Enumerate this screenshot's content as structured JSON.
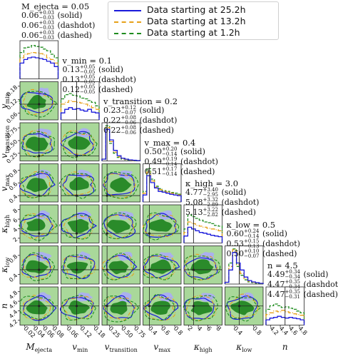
{
  "legend": {
    "items": [
      {
        "label": "Data starting at 25.2h",
        "color": "#1a1adb",
        "dash": "solid"
      },
      {
        "label": "Data starting at 13.2h",
        "color": "#e6a019",
        "dash": "dashdot"
      },
      {
        "label": "Data starting at 1.2h",
        "color": "#1e8c1e",
        "dash": "dashed"
      }
    ]
  },
  "chart_data": {
    "type": "corner",
    "parameters": [
      {
        "key": "mej",
        "label": "M_ejecta",
        "truth": 0.05,
        "ticks": [
          "0.02",
          "0.04",
          "0.06",
          "0.08"
        ],
        "range": [
          0.01,
          0.09
        ]
      },
      {
        "key": "vmin",
        "label": "v_min",
        "truth": 0.1,
        "ticks": [
          "0.06",
          "0.12",
          "0.18"
        ],
        "range": [
          0.03,
          0.2
        ]
      },
      {
        "key": "vtr",
        "label": "v_transition",
        "truth": 0.2,
        "ticks": [
          "0.25",
          "0.50",
          "0.75"
        ],
        "range": [
          0.1,
          0.85
        ]
      },
      {
        "key": "vmax",
        "label": "v_max",
        "truth": 0.4,
        "ticks": [
          "0.4",
          "0.6",
          "0.8"
        ],
        "range": [
          0.3,
          0.9
        ]
      },
      {
        "key": "khigh",
        "label": "κ_high",
        "truth": 3.0,
        "ticks": [
          "2",
          "4",
          "6",
          "8"
        ],
        "range": [
          1,
          9
        ]
      },
      {
        "key": "klow",
        "label": "κ_low",
        "truth": 0.5,
        "ticks": [
          "0.4",
          "0.8"
        ],
        "range": [
          0.2,
          1.0
        ]
      },
      {
        "key": "n",
        "label": "n",
        "truth": 4.5,
        "ticks": [
          "4.2",
          "4.4",
          "4.6",
          "4.8"
        ],
        "range": [
          4.1,
          4.9
        ]
      }
    ],
    "y_tick_labels": {
      "vmin": [
        "0.06",
        "0.12",
        "0.18"
      ],
      "vtr": [
        "0.25",
        "0.50",
        "0.75"
      ],
      "vmax": [
        "0.4",
        "0.6",
        "0.8"
      ],
      "khigh": [
        "2",
        "4",
        "6",
        "8"
      ],
      "klow": [
        "0.4",
        "0.8"
      ],
      "n": [
        "4.2",
        "4.4",
        "4.6",
        "4.8"
      ]
    },
    "annotations": [
      {
        "header": "M_ejecta = 0.05",
        "rows": [
          {
            "median": "0.06",
            "plus": "+0.03",
            "minus": "−0.03",
            "tag": "(solid)"
          },
          {
            "median": "0.06",
            "plus": "+0.03",
            "minus": "−0.03",
            "tag": "(dashdot)"
          },
          {
            "median": "0.06",
            "plus": "+0.03",
            "minus": "−0.03",
            "tag": "(dashed)"
          }
        ]
      },
      {
        "header": "v_min = 0.1",
        "rows": [
          {
            "median": "0.13",
            "plus": "+0.05",
            "minus": "−0.05",
            "tag": "(solid)"
          },
          {
            "median": "0.13",
            "plus": "+0.05",
            "minus": "−0.05",
            "tag": "(dashdot)"
          },
          {
            "median": "0.12",
            "plus": "+0.05",
            "minus": "−0.05",
            "tag": "(dashed)"
          }
        ]
      },
      {
        "header": "v_transition = 0.2",
        "rows": [
          {
            "median": "0.23",
            "plus": "+0.12",
            "minus": "−0.07",
            "tag": "(solid)"
          },
          {
            "median": "0.22",
            "plus": "+0.08",
            "minus": "−0.06",
            "tag": "(dashdot)"
          },
          {
            "median": "0.22",
            "plus": "+0.08",
            "minus": "−0.06",
            "tag": "(dashed)"
          }
        ]
      },
      {
        "header": "v_max = 0.4",
        "rows": [
          {
            "median": "0.50",
            "plus": "+0.20",
            "minus": "−0.14",
            "tag": "(solid)"
          },
          {
            "median": "0.49",
            "plus": "+0.19",
            "minus": "−0.14",
            "tag": "(dashdot)"
          },
          {
            "median": "0.51",
            "plus": "+0.17",
            "minus": "−0.14",
            "tag": "(dashed)"
          }
        ]
      },
      {
        "header": "κ_high = 3.0",
        "rows": [
          {
            "median": "4.77",
            "plus": "+3.40",
            "minus": "−2.95",
            "tag": "(solid)"
          },
          {
            "median": "5.08",
            "plus": "+3.32",
            "minus": "−2.89",
            "tag": "(dashdot)"
          },
          {
            "median": "5.13",
            "plus": "+3.22",
            "minus": "−2.82",
            "tag": "(dashed)"
          }
        ]
      },
      {
        "header": "κ_low = 0.5",
        "rows": [
          {
            "median": "0.60",
            "plus": "+0.24",
            "minus": "−0.14",
            "tag": "(solid)"
          },
          {
            "median": "0.53",
            "plus": "+0.15",
            "minus": "−0.13",
            "tag": "(dashdot)"
          },
          {
            "median": "0.50",
            "plus": "+0.10",
            "minus": "−0.07",
            "tag": "(dashed)"
          }
        ]
      },
      {
        "header": "n = 4.5",
        "rows": [
          {
            "median": "4.49",
            "plus": "+0.34",
            "minus": "−0.34",
            "tag": "(solid)"
          },
          {
            "median": "4.47",
            "plus": "+0.35",
            "minus": "−0.34",
            "tag": "(dashdot)"
          },
          {
            "median": "4.47",
            "plus": "+0.35",
            "minus": "−0.31",
            "tag": "(dashed)"
          }
        ]
      }
    ],
    "series_colors": {
      "solid": "#1a1adb",
      "dashdot": "#e6a019",
      "dashed": "#1e8c1e",
      "contour_outer_green": "#a9d89a",
      "contour_inner_green": "#2a8b2a",
      "contour_outer_blue": "#aab0ee",
      "truth_line": "#222222"
    },
    "histograms": {
      "mej": {
        "solid": [
          0.45,
          0.55,
          0.6,
          0.62,
          0.6,
          0.58,
          0.55,
          0.5,
          0.45,
          0.35
        ],
        "dashdot": [
          0.6,
          0.7,
          0.72,
          0.75,
          0.74,
          0.72,
          0.68,
          0.6,
          0.55,
          0.45
        ],
        "dashed": [
          0.75,
          0.88,
          0.9,
          0.95,
          0.92,
          0.9,
          0.85,
          0.8,
          0.7,
          0.6
        ]
      },
      "vmin": {
        "solid": [
          0.2,
          0.3,
          0.35,
          0.3,
          0.32,
          0.28,
          0.25,
          0.3,
          0.22,
          0.2
        ],
        "dashdot": [
          0.45,
          0.5,
          0.55,
          0.52,
          0.5,
          0.48,
          0.45,
          0.4,
          0.35,
          0.3
        ],
        "dashed": [
          0.6,
          0.72,
          0.75,
          0.7,
          0.68,
          0.62,
          0.6,
          0.55,
          0.5,
          0.4
        ]
      },
      "vtr": {
        "solid": [
          0.05,
          0.9,
          0.6,
          0.3,
          0.15,
          0.08,
          0.05,
          0.03,
          0.02,
          0.01
        ],
        "dashdot": [
          0.05,
          0.95,
          0.55,
          0.25,
          0.12,
          0.06,
          0.04,
          0.02,
          0.01,
          0.01
        ],
        "dashed": [
          0.05,
          1.0,
          0.5,
          0.22,
          0.1,
          0.05,
          0.03,
          0.02,
          0.01,
          0.01
        ]
      },
      "vmax": {
        "solid": [
          0.2,
          0.75,
          0.55,
          0.4,
          0.3,
          0.28,
          0.25,
          0.22,
          0.2,
          0.18
        ],
        "dashdot": [
          0.25,
          0.85,
          0.6,
          0.42,
          0.35,
          0.3,
          0.28,
          0.25,
          0.22,
          0.2
        ],
        "dashed": [
          0.3,
          0.95,
          0.65,
          0.45,
          0.38,
          0.32,
          0.3,
          0.27,
          0.25,
          0.22
        ]
      },
      "khigh": {
        "solid": [
          0.2,
          0.45,
          0.4,
          0.35,
          0.3,
          0.28,
          0.25,
          0.22,
          0.2,
          0.18
        ],
        "dashdot": [
          0.3,
          0.6,
          0.55,
          0.5,
          0.48,
          0.45,
          0.42,
          0.4,
          0.38,
          0.35
        ],
        "dashed": [
          0.4,
          0.8,
          0.75,
          0.7,
          0.65,
          0.6,
          0.58,
          0.55,
          0.5,
          0.48
        ]
      },
      "klow": {
        "solid": [
          0.05,
          0.4,
          0.9,
          0.6,
          0.4,
          0.2,
          0.1,
          0.06,
          0.04,
          0.02
        ],
        "dashdot": [
          0.05,
          0.5,
          0.98,
          0.55,
          0.3,
          0.15,
          0.08,
          0.05,
          0.03,
          0.02
        ],
        "dashed": [
          0.05,
          0.6,
          1.0,
          0.5,
          0.25,
          0.12,
          0.06,
          0.04,
          0.02,
          0.01
        ]
      },
      "n": {
        "solid": [
          0.15,
          0.2,
          0.22,
          0.25,
          0.22,
          0.2,
          0.22,
          0.2,
          0.18,
          0.15
        ],
        "dashdot": [
          0.3,
          0.35,
          0.4,
          0.38,
          0.42,
          0.38,
          0.35,
          0.32,
          0.3,
          0.28
        ],
        "dashed": [
          0.45,
          0.55,
          0.6,
          0.55,
          0.5,
          0.52,
          0.48,
          0.45,
          0.4,
          0.35
        ]
      }
    }
  }
}
